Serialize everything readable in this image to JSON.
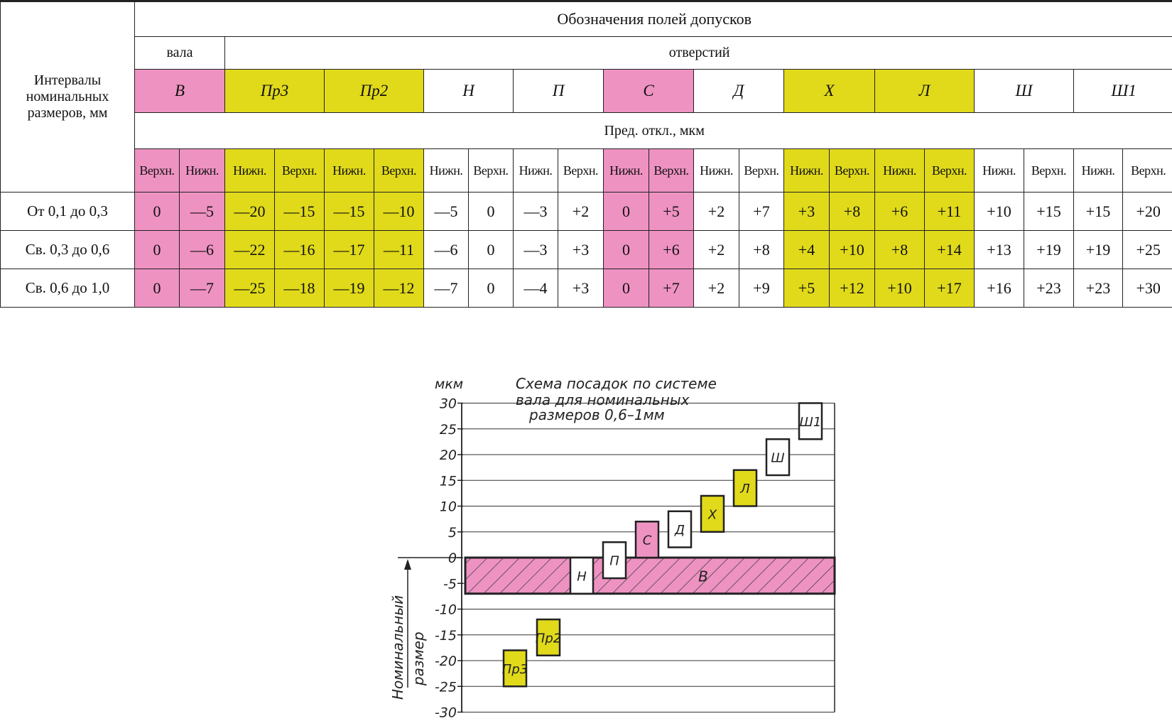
{
  "table": {
    "interval_header": "Интервалы номинальных размеров, мм",
    "main_header": "Обозначения полей допусков",
    "shaft_header": "вала",
    "hole_header": "отверстий",
    "limits_header": "Пред. откл., мкм",
    "fields": [
      {
        "name": "В",
        "color": "pink"
      },
      {
        "name": "Пр3",
        "color": "yellow"
      },
      {
        "name": "Пр2",
        "color": "yellow"
      },
      {
        "name": "Н",
        "color": "white"
      },
      {
        "name": "П",
        "color": "white"
      },
      {
        "name": "С",
        "color": "pink"
      },
      {
        "name": "Д",
        "color": "white"
      },
      {
        "name": "Х",
        "color": "yellow"
      },
      {
        "name": "Л",
        "color": "yellow"
      },
      {
        "name": "Ш",
        "color": "white"
      },
      {
        "name": "Ш1",
        "color": "white"
      }
    ],
    "edge_labels": [
      "Верхн.",
      "Нижн.",
      "Нижн.",
      "Верхн.",
      "Нижн.",
      "Верхн.",
      "Нижн.",
      "Верхн.",
      "Нижн.",
      "Верхн.",
      "Нижн.",
      "Верхн.",
      "Нижн.",
      "Верхн.",
      "Нижн.",
      "Верхн.",
      "Нижн.",
      "Верхн.",
      "Нижн.",
      "Верхн.",
      "Нижн.",
      "Верхн."
    ],
    "rows": [
      {
        "interval": "От 0,1 до 0,3",
        "values": [
          "0",
          "—5",
          "—20",
          "—15",
          "—15",
          "—10",
          "—5",
          "0",
          "—3",
          "+2",
          "0",
          "+5",
          "+2",
          "+7",
          "+3",
          "+8",
          "+6",
          "+11",
          "+10",
          "+15",
          "+15",
          "+20"
        ]
      },
      {
        "interval": "Св. 0,3 до 0,6",
        "values": [
          "0",
          "—6",
          "—22",
          "—16",
          "—17",
          "—11",
          "—6",
          "0",
          "—3",
          "+3",
          "0",
          "+6",
          "+2",
          "+8",
          "+4",
          "+10",
          "+8",
          "+14",
          "+13",
          "+19",
          "+19",
          "+25"
        ]
      },
      {
        "interval": "Св. 0,6 до 1,0",
        "values": [
          "0",
          "—7",
          "—25",
          "—18",
          "—19",
          "—12",
          "—7",
          "0",
          "—4",
          "+3",
          "0",
          "+7",
          "+2",
          "+9",
          "+5",
          "+12",
          "+10",
          "+17",
          "+16",
          "+23",
          "+23",
          "+30"
        ]
      }
    ]
  },
  "colors": {
    "pink": "#ee92c2",
    "yellow": "#e1da1a",
    "white": "#ffffff"
  },
  "diagram": {
    "unit": "мкм",
    "title_lines": [
      "Схема посадок по системе",
      "вала для номинальных",
      "размеров 0,6–1мм"
    ],
    "y_ticks": [
      "30",
      "25",
      "20",
      "15",
      "10",
      "5",
      "0",
      "-5",
      "-10",
      "-15",
      "-20",
      "-25",
      "-30"
    ],
    "nominal_label_lines": [
      "Номинальный",
      "размер"
    ],
    "boxes": [
      {
        "name": "Пр3",
        "lower": -25,
        "upper": -18,
        "color": "yellow"
      },
      {
        "name": "Пр2",
        "lower": -19,
        "upper": -12,
        "color": "yellow"
      },
      {
        "name": "Н",
        "lower": -7,
        "upper": 0,
        "color": "white"
      },
      {
        "name": "П",
        "lower": -4,
        "upper": 3,
        "color": "white"
      },
      {
        "name": "С",
        "lower": 0,
        "upper": 7,
        "color": "pink"
      },
      {
        "name": "Д",
        "lower": 2,
        "upper": 9,
        "color": "white"
      },
      {
        "name": "Х",
        "lower": 5,
        "upper": 12,
        "color": "yellow"
      },
      {
        "name": "Л",
        "lower": 10,
        "upper": 17,
        "color": "yellow"
      },
      {
        "name": "Ш",
        "lower": 16,
        "upper": 23,
        "color": "white"
      },
      {
        "name": "Ш1",
        "lower": 23,
        "upper": 30,
        "color": "white"
      }
    ],
    "shaft_band": {
      "name": "В",
      "lower": -7,
      "upper": 0,
      "color": "pink"
    }
  }
}
